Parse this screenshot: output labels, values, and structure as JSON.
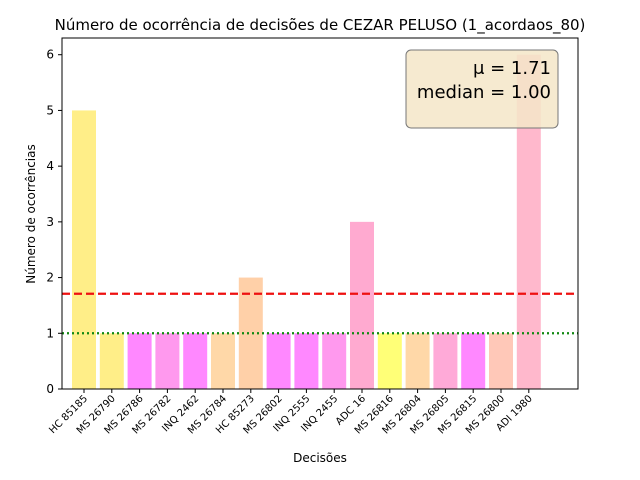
{
  "chart_data": {
    "type": "bar",
    "title": "Número de ocorrência de decisões de CEZAR PELUSO (1_acordaos_80)",
    "xlabel": "Decisões",
    "ylabel": "Número de ocorrências",
    "categories": [
      "HC 85185",
      "MS 26790",
      "MS 26786",
      "MS 26782",
      "INQ 2462",
      "MS 26784",
      "HC 85273",
      "MS 26802",
      "INQ 2555",
      "INQ 2455",
      "ADC 16",
      "MS 26816",
      "MS 26804",
      "MS 26805",
      "MS 26815",
      "MS 26800",
      "ADI 1980"
    ],
    "values": [
      5,
      1,
      1,
      1,
      1,
      1,
      2,
      1,
      1,
      1,
      3,
      1,
      1,
      1,
      1,
      1,
      6
    ],
    "bar_colors": [
      "#ffee88",
      "#ffee88",
      "#ff88ff",
      "#ff99ee",
      "#ff88ff",
      "#ffd8a8",
      "#ffd0a8",
      "#ff88ff",
      "#ff88ff",
      "#ff99ee",
      "#ffaad0",
      "#ffff77",
      "#ffd8a8",
      "#ffaad8",
      "#ff88ff",
      "#ffc8b8",
      "#ffb8cc"
    ],
    "yticks": [
      0,
      1,
      2,
      3,
      4,
      5,
      6
    ],
    "ylim": [
      0,
      6.3
    ],
    "mean": 1.71,
    "median": 1.0,
    "mean_line_color": "#ee1111",
    "median_line_color": "#118811",
    "stats_box": {
      "mean_label": "μ = 1.71",
      "median_label": "median = 1.00"
    },
    "legend_position": "top-right"
  }
}
